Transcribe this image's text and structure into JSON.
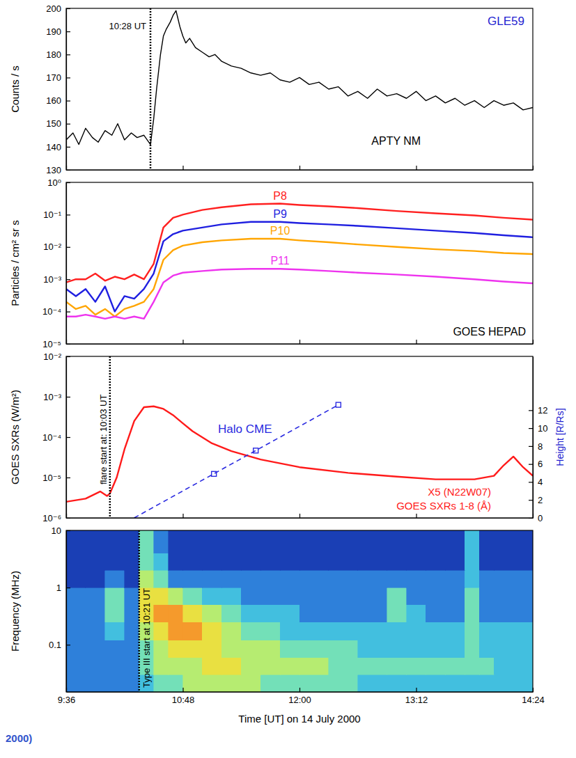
{
  "chart_data": [
    {
      "type": "line",
      "title": "GLE59",
      "y_label": "Counts / s",
      "xlim": [
        9.6,
        14.4
      ],
      "xticks": [
        {
          "value": 9.6,
          "label": "9:36"
        },
        {
          "value": 10.8,
          "label": "10:48"
        },
        {
          "value": 12,
          "label": "12:00"
        },
        {
          "value": 13.2,
          "label": "13:12"
        },
        {
          "value": 14.4,
          "label": "14:24"
        }
      ],
      "ylim": [
        130,
        200
      ],
      "yticks": [
        130,
        140,
        150,
        160,
        170,
        180,
        190,
        200
      ],
      "tick_labels": "y",
      "series": [
        {
          "name": "APTY NM",
          "color": "#000000",
          "x": [
            9.6,
            9.67,
            9.73,
            9.8,
            9.87,
            9.93,
            10.0,
            10.07,
            10.13,
            10.2,
            10.27,
            10.33,
            10.4,
            10.467,
            10.5,
            10.53,
            10.57,
            10.6,
            10.63,
            10.67,
            10.7,
            10.73,
            10.77,
            10.8,
            10.83,
            10.87,
            10.93,
            11.0,
            11.07,
            11.13,
            11.2,
            11.3,
            11.4,
            11.5,
            11.6,
            11.7,
            11.8,
            11.9,
            12.0,
            12.1,
            12.2,
            12.3,
            12.4,
            12.5,
            12.6,
            12.7,
            12.8,
            12.9,
            13.0,
            13.1,
            13.2,
            13.3,
            13.4,
            13.5,
            13.6,
            13.7,
            13.8,
            13.9,
            14.0,
            14.1,
            14.2,
            14.3,
            14.4
          ],
          "values": [
            143,
            146,
            141,
            148,
            144,
            142,
            147,
            145,
            150,
            143,
            146,
            144,
            145,
            141,
            152,
            165,
            180,
            188,
            191,
            194,
            197,
            199,
            192,
            188,
            185,
            187,
            183,
            181,
            179,
            180,
            177,
            175,
            174,
            172,
            171,
            172,
            169,
            168,
            170,
            167,
            168,
            165,
            166,
            162,
            164,
            161,
            165,
            162,
            163,
            161,
            164,
            160,
            162,
            159,
            161,
            158,
            160,
            157,
            160,
            158,
            159,
            156,
            157
          ]
        }
      ],
      "vlines": [
        {
          "x": 10.467,
          "label": "10:28 UT"
        }
      ]
    },
    {
      "type": "line",
      "title": "GOES HEPAD",
      "y_label": "Particles / cm² sr s",
      "log": "y",
      "xlim": [
        9.6,
        14.4
      ],
      "xticks": [
        {
          "value": 9.6,
          "label": "9:36"
        },
        {
          "value": 10.8,
          "label": "10:48"
        },
        {
          "value": 12,
          "label": "12:00"
        },
        {
          "value": 13.2,
          "label": "13:12"
        },
        {
          "value": 14.4,
          "label": "14:24"
        }
      ],
      "ylim": [
        1e-05,
        1
      ],
      "yticks": [
        {
          "value": 1e-05,
          "label": "10⁻⁵"
        },
        {
          "value": 0.0001,
          "label": "10⁻⁴"
        },
        {
          "value": 0.001,
          "label": "10⁻³"
        },
        {
          "value": 0.01,
          "label": "10⁻²"
        },
        {
          "value": 0.1,
          "label": "10⁻¹"
        },
        {
          "value": 1,
          "label": "10⁰"
        }
      ],
      "tick_labels": "y",
      "x": [
        9.6,
        9.7,
        9.8,
        9.9,
        10.0,
        10.1,
        10.2,
        10.3,
        10.4,
        10.5,
        10.6,
        10.7,
        10.8,
        11.0,
        11.2,
        11.5,
        11.8,
        12.0,
        12.3,
        12.6,
        13.0,
        13.4,
        13.8,
        14.1,
        14.4
      ],
      "series": [
        {
          "name": "P8",
          "color": "#ff2020",
          "values": [
            0.0008,
            0.001,
            0.001,
            0.0015,
            0.0009,
            0.0012,
            0.001,
            0.0014,
            0.001,
            0.003,
            0.04,
            0.08,
            0.1,
            0.14,
            0.17,
            0.21,
            0.22,
            0.2,
            0.18,
            0.16,
            0.13,
            0.11,
            0.095,
            0.08,
            0.07
          ]
        },
        {
          "name": "P9",
          "color": "#1f1fe0",
          "values": [
            0.0005,
            0.0003,
            0.0005,
            0.0002,
            0.0006,
            0.0001,
            0.0003,
            0.00025,
            0.0005,
            0.0015,
            0.015,
            0.025,
            0.032,
            0.04,
            0.05,
            0.06,
            0.06,
            0.055,
            0.05,
            0.045,
            0.038,
            0.032,
            0.027,
            0.023,
            0.02
          ]
        },
        {
          "name": "P10",
          "color": "#ffa500",
          "values": [
            0.0002,
            0.00012,
            0.00015,
            8e-05,
            0.00012,
            7e-05,
            0.00012,
            0.00015,
            0.0002,
            0.0005,
            0.004,
            0.008,
            0.011,
            0.014,
            0.016,
            0.018,
            0.018,
            0.016,
            0.014,
            0.012,
            0.01,
            0.0085,
            0.0075,
            0.0065,
            0.006
          ]
        },
        {
          "name": "P11",
          "color": "#ee33ee",
          "values": [
            7e-05,
            7e-05,
            8e-05,
            7e-05,
            6e-05,
            7e-05,
            6e-05,
            7e-05,
            6e-05,
            0.0002,
            0.0008,
            0.0013,
            0.0016,
            0.0018,
            0.002,
            0.0021,
            0.0021,
            0.002,
            0.0018,
            0.0016,
            0.0014,
            0.0012,
            0.001,
            0.00085,
            0.00075
          ]
        }
      ]
    },
    {
      "type": "line",
      "y_label": "GOES SXRs (W/m²)",
      "y2_label": "Height [R/Rs]",
      "log": "y",
      "xlim": [
        9.6,
        14.4
      ],
      "xticks": [
        {
          "value": 9.6,
          "label": "9:36"
        },
        {
          "value": 10.8,
          "label": "10:48"
        },
        {
          "value": 12,
          "label": "12:00"
        },
        {
          "value": 13.2,
          "label": "13:12"
        },
        {
          "value": 14.4,
          "label": "14:24"
        }
      ],
      "ylim": [
        1e-06,
        0.01
      ],
      "yticks": [
        {
          "value": 1e-06,
          "label": "10⁻⁶"
        },
        {
          "value": 1e-05,
          "label": "10⁻⁵"
        },
        {
          "value": 0.0001,
          "label": "10⁻⁴"
        },
        {
          "value": 0.001,
          "label": "10⁻³"
        },
        {
          "value": 0.01,
          "label": "10⁻²"
        }
      ],
      "y2lim": [
        0,
        18
      ],
      "y2ticks": [
        0,
        2,
        4,
        6,
        8,
        10,
        12
      ],
      "tick_labels": "y",
      "series": [
        {
          "name": "GOES SXRs 1-8 (Å)",
          "color": "#ff1a1a",
          "x": [
            9.6,
            9.8,
            9.95,
            10.02,
            10.05,
            10.12,
            10.2,
            10.3,
            10.4,
            10.5,
            10.6,
            10.7,
            10.8,
            10.9,
            11.1,
            11.3,
            11.6,
            12.0,
            12.5,
            13.0,
            13.4,
            13.8,
            14.0,
            14.1,
            14.2,
            14.3,
            14.4
          ],
          "values": [
            2.5e-06,
            3e-06,
            4.5e-06,
            3.5e-06,
            4e-06,
            1e-05,
            5e-05,
            0.00025,
            0.00055,
            0.00058,
            0.0005,
            0.00035,
            0.00022,
            0.00014,
            7e-05,
            4.5e-05,
            2.8e-05,
            1.8e-05,
            1.3e-05,
            1.05e-05,
            9e-06,
            9e-06,
            1.1e-05,
            2e-05,
            3.3e-05,
            1.8e-05,
            1.1e-05
          ]
        },
        {
          "color": "#2a2ae0",
          "axis": "y2",
          "line_style": "dashed",
          "x": [
            10.3,
            12.4
          ],
          "values": [
            0,
            12.6
          ]
        },
        {
          "name": "Halo CME",
          "color": "#2a2ae0",
          "axis": "y2",
          "line_style": "none",
          "marker": "square",
          "x": [
            11.12,
            11.55,
            12.4
          ],
          "values": [
            4.9,
            7.5,
            12.6
          ]
        }
      ],
      "annotations": [
        "X5 (N22W07)"
      ],
      "vlines": [
        {
          "x": 10.05,
          "label": "flare start at: 10:03 UT"
        }
      ]
    },
    {
      "type": "heatmap",
      "y_label": "Frequency (MHz)",
      "x_label": "Time [UT] on 14 July 2000",
      "log": "y",
      "xlim": [
        9.6,
        14.4
      ],
      "xticks": [
        {
          "value": 9.6,
          "label": "9:36"
        },
        {
          "value": 10.8,
          "label": "10:48"
        },
        {
          "value": 12,
          "label": "12:00"
        },
        {
          "value": 13.2,
          "label": "13:12"
        },
        {
          "value": 14.4,
          "label": "14:24"
        }
      ],
      "ylim": [
        0.015,
        10
      ],
      "yticks": [
        0.1,
        1,
        10
      ],
      "time_bins": [
        9.6,
        9.8,
        10.0,
        10.2,
        10.35,
        10.5,
        10.65,
        10.8,
        11.0,
        11.2,
        11.4,
        11.6,
        11.8,
        12.0,
        12.3,
        12.6,
        12.9,
        13.1,
        13.3,
        13.5,
        13.7,
        13.85,
        14.0,
        14.4
      ],
      "frequency_bins": [
        0.015,
        0.03,
        0.06,
        0.12,
        0.25,
        0.5,
        1,
        2,
        4,
        10
      ],
      "cells": [
        [
          1,
          1,
          1,
          1,
          2,
          3,
          3,
          4,
          4,
          4,
          4,
          3,
          3,
          3,
          3,
          2,
          2,
          2,
          2,
          2,
          2,
          2,
          2
        ],
        [
          1,
          1,
          1,
          1,
          3,
          4,
          4,
          4,
          5,
          5,
          4,
          4,
          4,
          4,
          3,
          3,
          3,
          3,
          3,
          3,
          3,
          3,
          2
        ],
        [
          1,
          1,
          1,
          1,
          3,
          4,
          5,
          5,
          5,
          4,
          4,
          4,
          3,
          3,
          3,
          2,
          2,
          2,
          2,
          2,
          3,
          2,
          2
        ],
        [
          1,
          1,
          2,
          1,
          4,
          5,
          6,
          6,
          5,
          4,
          3,
          3,
          2,
          2,
          2,
          2,
          2,
          2,
          2,
          2,
          3,
          2,
          2
        ],
        [
          1,
          1,
          3,
          1,
          5,
          6,
          6,
          5,
          4,
          3,
          2,
          2,
          2,
          1,
          1,
          1,
          3,
          2,
          1,
          1,
          3,
          1,
          1
        ],
        [
          1,
          1,
          3,
          1,
          5,
          5,
          4,
          3,
          2,
          2,
          1,
          1,
          1,
          1,
          1,
          1,
          3,
          1,
          1,
          1,
          3,
          1,
          1
        ],
        [
          0,
          0,
          1,
          0,
          4,
          3,
          1,
          1,
          1,
          1,
          1,
          1,
          1,
          1,
          1,
          1,
          1,
          1,
          1,
          1,
          2,
          1,
          1
        ],
        [
          0,
          0,
          0,
          0,
          3,
          2,
          0,
          0,
          0,
          0,
          0,
          0,
          0,
          0,
          0,
          0,
          0,
          0,
          0,
          0,
          2,
          0,
          0
        ],
        [
          0,
          0,
          0,
          0,
          3,
          1,
          0,
          0,
          0,
          0,
          0,
          0,
          0,
          0,
          0,
          0,
          0,
          0,
          0,
          0,
          2,
          0,
          0
        ]
      ],
      "vlines": [
        {
          "x": 10.35,
          "label": "Type III start at 10:21 UT"
        }
      ]
    }
  ],
  "caption": "2000)"
}
